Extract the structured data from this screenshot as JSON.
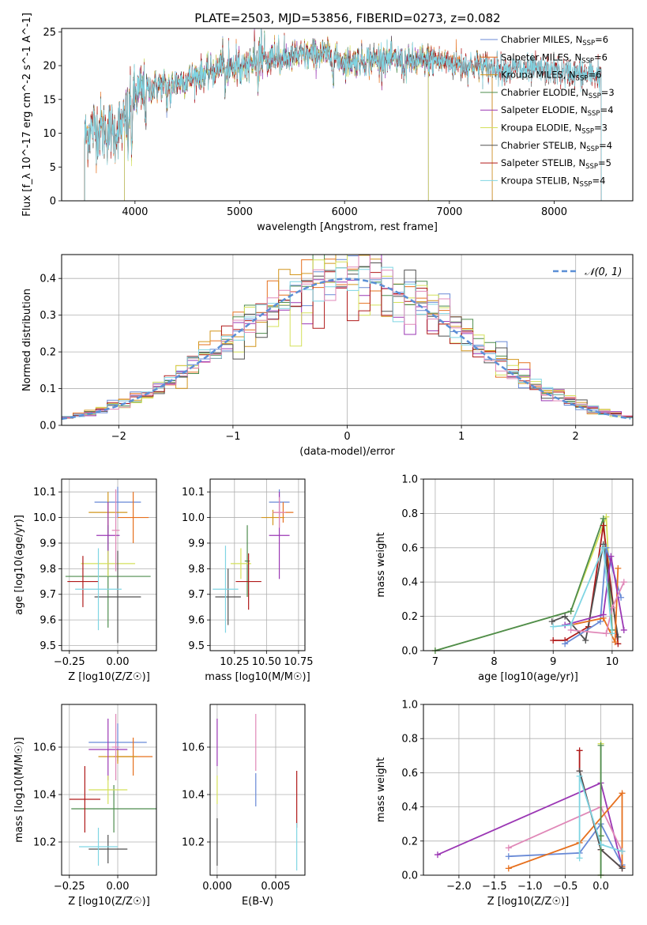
{
  "title": "PLATE=2503, MJD=53856, FIBERID=0273, z=0.082",
  "colors": {
    "chabrier_miles": "#6889d6",
    "salpeter_miles": "#e6701e",
    "kroupa_miles": "#d2961d",
    "chabrier_elodie": "#4e8c4e",
    "salpeter_elodie": "#9b37b4",
    "kroupa_elodie": "#d4e05a",
    "chabrier_stelib": "#505050",
    "salpeter_stelib": "#b01a1a",
    "kroupa_stelib": "#7fd5e3",
    "pink": "#e088b8",
    "gaussian": "#5b8fd6"
  },
  "chart_data": [
    {
      "type": "line",
      "xlabel": "wavelength [Angstrom, rest frame]",
      "ylabel": "Flux [f_λ 10^-17 erg cm^-2 s^-1 A^-1]",
      "xlim": [
        3300,
        8750
      ],
      "ylim": [
        0,
        25.5
      ],
      "xticks": [
        4000,
        5000,
        6000,
        7000,
        8000
      ],
      "yticks": [
        0,
        5,
        10,
        15,
        20,
        25
      ],
      "grid": false,
      "legend_position": "right",
      "legend": [
        {
          "main": "Chabrier MILES, N",
          "sub": "SSP",
          "val": "=6",
          "color": "chabrier_miles"
        },
        {
          "main": "Salpeter MILES, N",
          "sub": "SSP",
          "val": "=6",
          "color": "salpeter_miles"
        },
        {
          "main": "Kroupa MILES, N",
          "sub": "SSP",
          "val": "=6",
          "color": "kroupa_miles"
        },
        {
          "main": "Chabrier ELODIE, N",
          "sub": "SSP",
          "val": "=3",
          "color": "chabrier_elodie"
        },
        {
          "main": "Salpeter ELODIE, N",
          "sub": "SSP",
          "val": "=4",
          "color": "salpeter_elodie"
        },
        {
          "main": "Kroupa ELODIE, N",
          "sub": "SSP",
          "val": "=3",
          "color": "kroupa_elodie"
        },
        {
          "main": "Chabrier STELIB, N",
          "sub": "SSP",
          "val": "=4",
          "color": "chabrier_stelib"
        },
        {
          "main": "Salpeter STELIB, N",
          "sub": "SSP",
          "val": "=5",
          "color": "salpeter_stelib"
        },
        {
          "main": "Kroupa STELIB, N",
          "sub": "SSP",
          "val": "=4",
          "color": "kroupa_stelib"
        }
      ],
      "continuum": [
        [
          3520,
          9.5
        ],
        [
          3600,
          11
        ],
        [
          3700,
          10.5
        ],
        [
          3800,
          10.3
        ],
        [
          3900,
          11.5
        ],
        [
          4000,
          15.5
        ],
        [
          4200,
          17
        ],
        [
          4400,
          17.5
        ],
        [
          4600,
          18.5
        ],
        [
          4800,
          19.5
        ],
        [
          5000,
          19.8
        ],
        [
          5200,
          20.8
        ],
        [
          5400,
          21
        ],
        [
          5600,
          21.5
        ],
        [
          5800,
          21.8
        ],
        [
          6000,
          20.5
        ],
        [
          6200,
          20.8
        ],
        [
          6400,
          21
        ],
        [
          6600,
          20.5
        ],
        [
          6800,
          20.8
        ],
        [
          7000,
          20.5
        ],
        [
          7200,
          20
        ],
        [
          7400,
          19.7
        ],
        [
          7600,
          19.5
        ],
        [
          7800,
          19.3
        ],
        [
          8000,
          19.2
        ],
        [
          8200,
          18.8
        ],
        [
          8450,
          18.6
        ]
      ],
      "series": [
        {
          "color": "chabrier_miles",
          "x0": 3520,
          "x1": 7410
        },
        {
          "color": "salpeter_miles",
          "x0": 3520,
          "x1": 7410
        },
        {
          "color": "kroupa_miles",
          "x0": 3520,
          "x1": 7410
        },
        {
          "color": "chabrier_elodie",
          "x0": 3900,
          "x1": 6800
        },
        {
          "color": "salpeter_elodie",
          "x0": 3900,
          "x1": 6800
        },
        {
          "color": "kroupa_elodie",
          "x0": 3900,
          "x1": 6800
        },
        {
          "color": "chabrier_stelib",
          "x0": 3520,
          "x1": 8450
        },
        {
          "color": "salpeter_stelib",
          "x0": 3520,
          "x1": 8450
        },
        {
          "color": "kroupa_stelib",
          "x0": 3520,
          "x1": 8450
        }
      ]
    },
    {
      "type": "histogram",
      "xlabel": "(data-model)/error",
      "ylabel": "Normed distribution",
      "xlim": [
        -2.5,
        2.5
      ],
      "ylim": [
        0,
        0.465
      ],
      "xticks": [
        -2,
        -1,
        0,
        1,
        2
      ],
      "yticks": [
        0.0,
        0.1,
        0.2,
        0.3,
        0.4
      ],
      "grid": true,
      "legend_position": "top-right",
      "gaussian_label": "𝒩(0, 1)",
      "bin_width": 0.1,
      "series_colors": [
        "chabrier_miles",
        "salpeter_miles",
        "kroupa_miles",
        "chabrier_elodie",
        "salpeter_elodie",
        "kroupa_elodie",
        "chabrier_stelib",
        "salpeter_stelib",
        "kroupa_stelib",
        "pink"
      ]
    },
    {
      "type": "scatter",
      "xlabel": "Z [log10(Z/Z☉)]",
      "ylabel": "age  [log10(age/yr)]",
      "xlim": [
        -0.29,
        0.2
      ],
      "ylim": [
        9.48,
        10.15
      ],
      "xticks": [
        -0.25,
        0.0
      ],
      "yticks": [
        9.5,
        9.6,
        9.7,
        9.8,
        9.9,
        10.0,
        10.1
      ],
      "grid": true,
      "points": [
        {
          "x": 0.0,
          "y": 10.06,
          "xerr": 0.12,
          "yerr": 0.06,
          "color": "chabrier_miles"
        },
        {
          "x": 0.08,
          "y": 10.0,
          "xerr": 0.08,
          "yerr": 0.1,
          "color": "salpeter_miles"
        },
        {
          "x": -0.05,
          "y": 10.02,
          "xerr": 0.1,
          "yerr": 0.08,
          "color": "kroupa_miles"
        },
        {
          "x": -0.05,
          "y": 9.77,
          "xerr": 0.22,
          "yerr": 0.2,
          "color": "chabrier_elodie"
        },
        {
          "x": -0.05,
          "y": 9.93,
          "xerr": 0.06,
          "yerr": 0.13,
          "color": "salpeter_elodie"
        },
        {
          "x": -0.05,
          "y": 9.82,
          "xerr": 0.14,
          "yerr": 0.05,
          "color": "kroupa_elodie"
        },
        {
          "x": 0.0,
          "y": 9.69,
          "xerr": 0.12,
          "yerr": 0.18,
          "color": "chabrier_stelib"
        },
        {
          "x": -0.18,
          "y": 9.75,
          "xerr": 0.08,
          "yerr": 0.1,
          "color": "salpeter_stelib"
        },
        {
          "x": -0.1,
          "y": 9.72,
          "xerr": 0.12,
          "yerr": 0.16,
          "color": "kroupa_stelib"
        },
        {
          "x": -0.01,
          "y": 9.95,
          "xerr": 0.02,
          "yerr": 0.16,
          "color": "pink"
        }
      ]
    },
    {
      "type": "scatter",
      "xlabel": "mass [log10(M/M☉)]",
      "ylabel": "",
      "xlim": [
        10.06,
        10.8
      ],
      "ylim": [
        9.48,
        10.15
      ],
      "xticks": [
        10.25,
        10.5,
        10.75
      ],
      "yticks": [
        9.5,
        9.6,
        9.7,
        9.8,
        9.9,
        10.0,
        10.1
      ],
      "grid": true,
      "points": [
        {
          "x": 10.6,
          "y": 10.06,
          "xerr": 0.08,
          "yerr": 0.05,
          "color": "chabrier_miles"
        },
        {
          "x": 10.63,
          "y": 10.02,
          "xerr": 0.08,
          "yerr": 0.04,
          "color": "salpeter_miles"
        },
        {
          "x": 10.55,
          "y": 10.0,
          "xerr": 0.09,
          "yerr": 0.03,
          "color": "kroupa_miles"
        },
        {
          "x": 10.35,
          "y": 9.83,
          "xerr": 0.02,
          "yerr": 0.14,
          "color": "chabrier_elodie"
        },
        {
          "x": 10.6,
          "y": 9.93,
          "xerr": 0.08,
          "yerr": 0.17,
          "color": "salpeter_elodie"
        },
        {
          "x": 10.3,
          "y": 9.82,
          "xerr": 0.08,
          "yerr": 0.06,
          "color": "kroupa_elodie"
        },
        {
          "x": 10.2,
          "y": 9.69,
          "xerr": 0.1,
          "yerr": 0.11,
          "color": "chabrier_stelib"
        },
        {
          "x": 10.36,
          "y": 9.75,
          "xerr": 0.1,
          "yerr": 0.11,
          "color": "salpeter_stelib"
        },
        {
          "x": 10.18,
          "y": 9.72,
          "xerr": 0.1,
          "yerr": 0.17,
          "color": "kroupa_stelib"
        },
        {
          "x": 10.6,
          "y": 10.02,
          "xerr": 0.05,
          "yerr": 0.06,
          "color": "pink"
        }
      ]
    },
    {
      "type": "scatter-lines",
      "xlabel": "age  [log10(age/yr)]",
      "ylabel": "mass weight",
      "xlim": [
        6.8,
        10.35
      ],
      "ylim": [
        0,
        1.0
      ],
      "xticks": [
        7,
        8,
        9,
        10
      ],
      "yticks": [
        0.0,
        0.2,
        0.4,
        0.6,
        0.8,
        1.0
      ],
      "grid": true,
      "series": [
        {
          "color": "kroupa_elodie",
          "points": [
            [
              7.0,
              0.0
            ],
            [
              9.3,
              0.23
            ],
            [
              9.9,
              0.78
            ],
            [
              10.0,
              0.1
            ]
          ]
        },
        {
          "color": "chabrier_elodie",
          "points": [
            [
              7.0,
              0.0
            ],
            [
              9.3,
              0.23
            ],
            [
              9.85,
              0.77
            ],
            [
              10.0,
              0.12
            ]
          ]
        },
        {
          "color": "salpeter_stelib",
          "points": [
            [
              9.0,
              0.06
            ],
            [
              9.2,
              0.06
            ],
            [
              9.6,
              0.14
            ],
            [
              9.85,
              0.73
            ],
            [
              10.1,
              0.04
            ]
          ]
        },
        {
          "color": "chabrier_stelib",
          "points": [
            [
              8.98,
              0.17
            ],
            [
              9.2,
              0.2
            ],
            [
              9.55,
              0.06
            ],
            [
              9.85,
              0.62
            ],
            [
              10.1,
              0.08
            ]
          ]
        },
        {
          "color": "chabrier_miles",
          "points": [
            [
              9.2,
              0.04
            ],
            [
              9.8,
              0.17
            ],
            [
              9.9,
              0.6
            ],
            [
              10.15,
              0.31
            ]
          ]
        },
        {
          "color": "salpeter_miles",
          "points": [
            [
              9.3,
              0.15
            ],
            [
              9.85,
              0.19
            ],
            [
              10.05,
              0.05
            ],
            [
              10.1,
              0.48
            ]
          ]
        },
        {
          "color": "salpeter_elodie",
          "points": [
            [
              9.2,
              0.15
            ],
            [
              9.85,
              0.21
            ],
            [
              9.98,
              0.55
            ],
            [
              10.2,
              0.12
            ]
          ]
        },
        {
          "color": "pink",
          "points": [
            [
              9.3,
              0.12
            ],
            [
              9.9,
              0.1
            ],
            [
              10.0,
              0.25
            ],
            [
              10.2,
              0.4
            ]
          ]
        },
        {
          "color": "kroupa_stelib",
          "points": [
            [
              9.0,
              0.14
            ],
            [
              9.3,
              0.15
            ],
            [
              9.85,
              0.6
            ],
            [
              10.0,
              0.1
            ]
          ]
        }
      ]
    },
    {
      "type": "scatter",
      "xlabel": "Z [log10(Z/Z☉)]",
      "ylabel": "mass [log10(M/M☉)]",
      "xlim": [
        -0.29,
        0.2
      ],
      "ylim": [
        10.06,
        10.78
      ],
      "xticks": [
        -0.25,
        0.0
      ],
      "yticks": [
        10.2,
        10.4,
        10.6
      ],
      "grid": true,
      "points": [
        {
          "x": 0.0,
          "y": 10.62,
          "xerr": 0.15,
          "yerr": 0.08,
          "color": "chabrier_miles"
        },
        {
          "x": 0.08,
          "y": 10.56,
          "xerr": 0.1,
          "yerr": 0.08,
          "color": "salpeter_miles"
        },
        {
          "x": 0.0,
          "y": 10.56,
          "xerr": 0.1,
          "yerr": 0.03,
          "color": "kroupa_miles"
        },
        {
          "x": -0.02,
          "y": 10.34,
          "xerr": 0.22,
          "yerr": 0.1,
          "color": "chabrier_elodie"
        },
        {
          "x": -0.05,
          "y": 10.59,
          "xerr": 0.1,
          "yerr": 0.13,
          "color": "salpeter_elodie"
        },
        {
          "x": -0.05,
          "y": 10.42,
          "xerr": 0.1,
          "yerr": 0.06,
          "color": "kroupa_elodie"
        },
        {
          "x": -0.05,
          "y": 10.17,
          "xerr": 0.1,
          "yerr": 0.06,
          "color": "chabrier_stelib"
        },
        {
          "x": -0.17,
          "y": 10.38,
          "xerr": 0.08,
          "yerr": 0.14,
          "color": "salpeter_stelib"
        },
        {
          "x": -0.1,
          "y": 10.18,
          "xerr": 0.1,
          "yerr": 0.08,
          "color": "kroupa_stelib"
        },
        {
          "x": -0.01,
          "y": 10.6,
          "xerr": 0.02,
          "yerr": 0.14,
          "color": "pink"
        }
      ]
    },
    {
      "type": "scatter",
      "xlabel": "E(B-V)",
      "ylabel": "",
      "xlim": [
        -0.0006,
        0.0075
      ],
      "ylim": [
        10.06,
        10.78
      ],
      "xticks": [
        0.0,
        0.005
      ],
      "xtick_labels": [
        "0.000",
        "0.005"
      ],
      "yticks": [
        10.2,
        10.4,
        10.6
      ],
      "grid": true,
      "points": [
        {
          "x": 0.0,
          "y": 10.62,
          "yerr": 0.1,
          "color": "salpeter_elodie"
        },
        {
          "x": 0.0,
          "y": 10.42,
          "yerr": 0.06,
          "color": "kroupa_elodie"
        },
        {
          "x": 0.0,
          "y": 10.2,
          "yerr": 0.1,
          "color": "chabrier_stelib"
        },
        {
          "x": 0.0033,
          "y": 10.62,
          "yerr": 0.12,
          "color": "pink"
        },
        {
          "x": 0.0033,
          "y": 10.42,
          "yerr": 0.07,
          "color": "chabrier_miles"
        },
        {
          "x": 0.0068,
          "y": 10.38,
          "yerr": 0.12,
          "color": "salpeter_stelib"
        },
        {
          "x": 0.0068,
          "y": 10.18,
          "yerr": 0.1,
          "color": "kroupa_stelib"
        }
      ]
    },
    {
      "type": "scatter-lines",
      "xlabel": "Z [log10(Z/Z☉)]",
      "ylabel": "mass weight",
      "xlim": [
        -2.5,
        0.45
      ],
      "ylim": [
        0,
        1.0
      ],
      "xticks": [
        -2.0,
        -1.5,
        -1.0,
        -0.5,
        0.0
      ],
      "yticks": [
        0.0,
        0.2,
        0.4,
        0.6,
        0.8,
        1.0
      ],
      "grid": true,
      "series": [
        {
          "color": "salpeter_elodie",
          "points": [
            [
              -2.3,
              0.12
            ],
            [
              0.0,
              0.54
            ],
            [
              0.3,
              0.05
            ]
          ]
        },
        {
          "color": "pink",
          "points": [
            [
              -1.3,
              0.16
            ],
            [
              0.0,
              0.4
            ],
            [
              0.3,
              0.14
            ]
          ]
        },
        {
          "color": "chabrier_miles",
          "points": [
            [
              -1.3,
              0.11
            ],
            [
              -0.3,
              0.13
            ],
            [
              0.0,
              0.3
            ],
            [
              0.3,
              0.06
            ]
          ]
        },
        {
          "color": "salpeter_miles",
          "points": [
            [
              -1.3,
              0.04
            ],
            [
              -0.3,
              0.19
            ],
            [
              0.3,
              0.48
            ],
            [
              0.3,
              0.05
            ]
          ]
        },
        {
          "color": "salpeter_stelib",
          "points": [
            [
              -0.3,
              0.73
            ],
            [
              -0.3,
              0.61
            ],
            [
              0.0,
              0.15
            ],
            [
              0.3,
              0.04
            ]
          ]
        },
        {
          "color": "chabrier_stelib",
          "points": [
            [
              -0.3,
              0.61
            ],
            [
              0.0,
              0.15
            ],
            [
              0.3,
              0.04
            ]
          ]
        },
        {
          "color": "kroupa_elodie",
          "points": [
            [
              0.0,
              0.77
            ],
            [
              0.0,
              0.23
            ],
            [
              0.0,
              0.0
            ]
          ]
        },
        {
          "color": "chabrier_elodie",
          "points": [
            [
              0.0,
              0.76
            ],
            [
              0.0,
              0.23
            ],
            [
              0.0,
              0.0
            ]
          ]
        },
        {
          "color": "kroupa_stelib",
          "points": [
            [
              -0.3,
              0.1
            ],
            [
              -0.3,
              0.58
            ],
            [
              0.0,
              0.18
            ],
            [
              0.3,
              0.14
            ]
          ]
        }
      ]
    }
  ]
}
